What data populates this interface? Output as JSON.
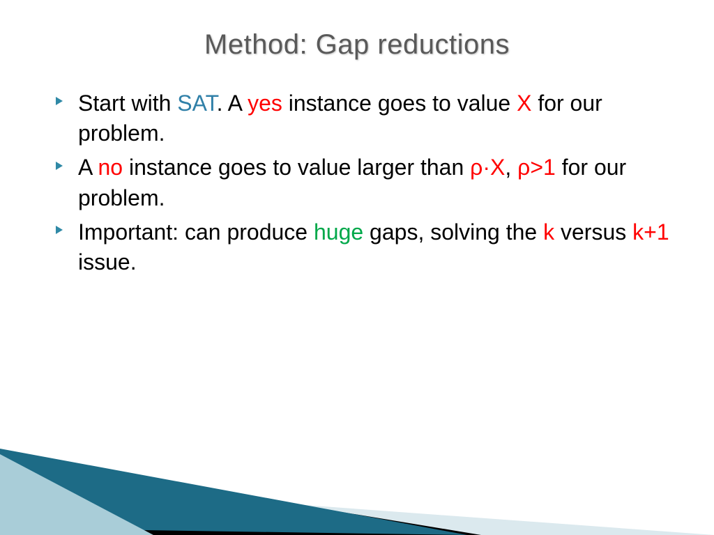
{
  "title": {
    "text": "Method: Gap reductions",
    "fontsize": 40,
    "color": "#595959"
  },
  "bullets": {
    "marker_color": "#2f89a6",
    "marker_size": 10,
    "fontsize": 32,
    "items": [
      {
        "runs": [
          {
            "t": "Start with "
          },
          {
            "t": "SAT",
            "c": "sat"
          },
          {
            "t": ". A "
          },
          {
            "t": "yes",
            "c": "red"
          },
          {
            "t": " instance goes to value "
          },
          {
            "t": "X",
            "c": "red"
          },
          {
            "t": " for our problem."
          }
        ]
      },
      {
        "runs": [
          {
            "t": "A "
          },
          {
            "t": "no",
            "c": "red"
          },
          {
            "t": " instance goes to value larger than  "
          },
          {
            "t": "ρ·X",
            "c": "red"
          },
          {
            "t": ", "
          },
          {
            "t": "ρ>1",
            "c": "red"
          },
          {
            "t": "  for our problem."
          }
        ]
      },
      {
        "runs": [
          {
            "t": "Important: can produce "
          },
          {
            "t": "huge",
            "c": "green"
          },
          {
            "t": " gaps, solving the "
          },
          {
            "t": "k",
            "c": "red"
          },
          {
            "t": " versus "
          },
          {
            "t": "k+1",
            "c": "red"
          },
          {
            "t": " issue."
          }
        ]
      }
    ]
  },
  "decor": {
    "teal_dark": "#1d6b86",
    "teal_light": "#a9cdd8",
    "pale": "#dbe9ee",
    "black": "#000000"
  }
}
